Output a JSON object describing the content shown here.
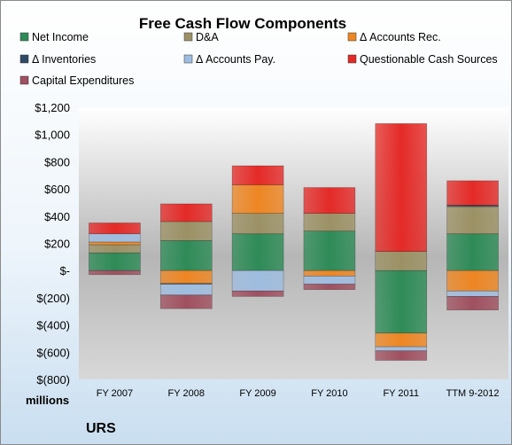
{
  "chart_data": {
    "type": "bar",
    "stacked": true,
    "title": "Free Cash Flow Components",
    "categories": [
      "FY 2007",
      "FY 2008",
      "FY 2009",
      "FY 2010",
      "FY 2011",
      "TTM 9-2012"
    ],
    "series": [
      {
        "name": "Net Income",
        "color": "#2e8b57",
        "values": [
          130,
          220,
          270,
          290,
          -460,
          270
        ]
      },
      {
        "name": "D&A",
        "color": "#9c9165",
        "values": [
          60,
          140,
          150,
          130,
          140,
          200
        ]
      },
      {
        "name": "Δ Accounts Rec.",
        "color": "#ee8623",
        "values": [
          20,
          -95,
          210,
          -40,
          -100,
          -150
        ]
      },
      {
        "name": "Δ Inventories",
        "color": "#2f4a64",
        "values": [
          0,
          -5,
          0,
          0,
          0,
          10
        ]
      },
      {
        "name": "Δ Accounts Pay.",
        "color": "#9fbde0",
        "values": [
          60,
          -80,
          -150,
          -60,
          -30,
          -40
        ]
      },
      {
        "name": "Questionable Cash Sources",
        "color": "#e42a27",
        "values": [
          80,
          130,
          140,
          190,
          940,
          180
        ]
      },
      {
        "name": "Capital Expenditures",
        "color": "#a05060",
        "values": [
          -30,
          -100,
          -40,
          -40,
          -70,
          -100
        ]
      }
    ],
    "ylim": [
      -800,
      1200
    ],
    "yticks": [
      -800,
      -600,
      -400,
      -200,
      0,
      200,
      400,
      600,
      800,
      1000,
      1200
    ],
    "ytick_labels": [
      "$(800)",
      "$(600)",
      "$(400)",
      "$(200)",
      "$-",
      "$200",
      "$400",
      "$600",
      "$800",
      "$1,000",
      "$1,200"
    ],
    "legend_position": "top",
    "grid": false
  },
  "units_label": "millions",
  "company": "URS"
}
